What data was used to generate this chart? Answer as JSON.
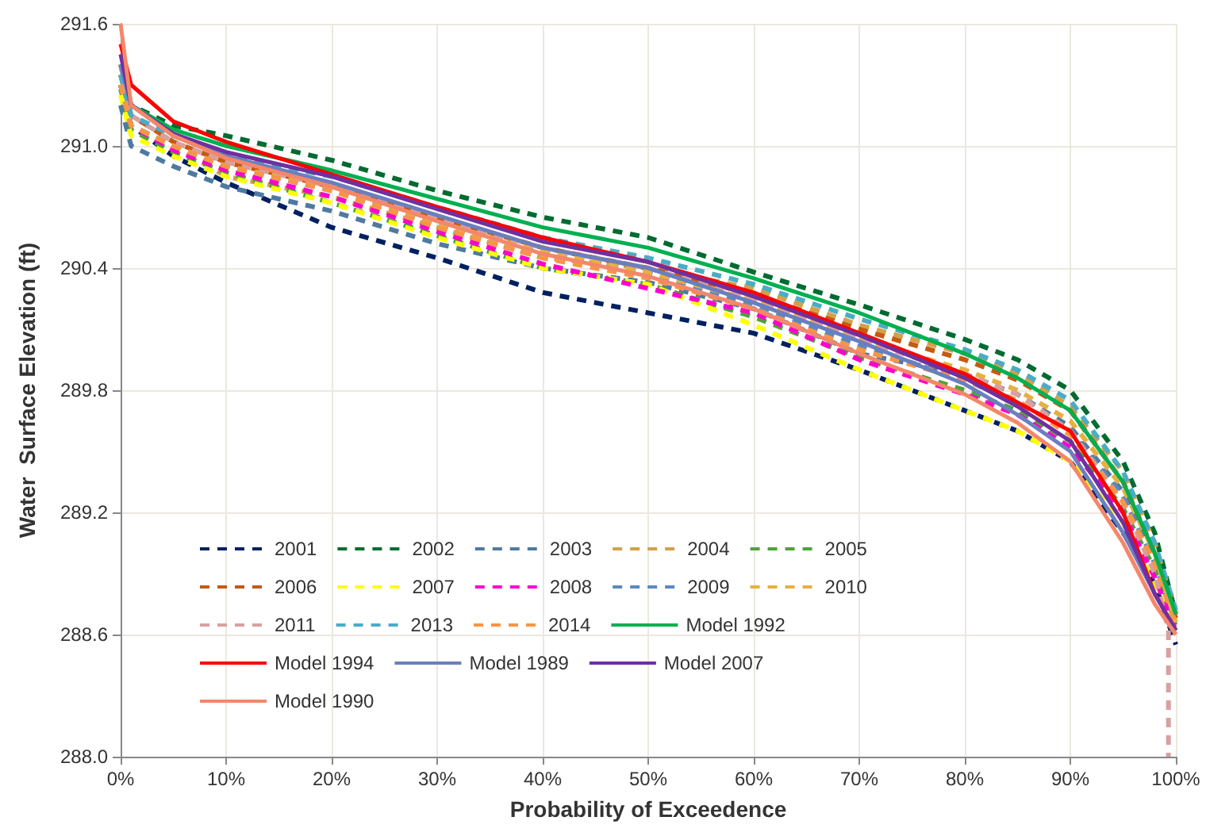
{
  "chart_data": {
    "type": "line",
    "xlabel": "Probability of Exceedence",
    "ylabel": "Water  Surface Elevation (ft)",
    "x": [
      0,
      1,
      5,
      10,
      20,
      30,
      40,
      50,
      60,
      70,
      80,
      85,
      90,
      95,
      98,
      100
    ],
    "xlim": [
      0,
      100
    ],
    "xticks": [
      {
        "value": 0,
        "label": "0%"
      },
      {
        "value": 10,
        "label": "10%"
      },
      {
        "value": 20,
        "label": "20%"
      },
      {
        "value": 30,
        "label": "30%"
      },
      {
        "value": 40,
        "label": "40%"
      },
      {
        "value": 50,
        "label": "50%"
      },
      {
        "value": 60,
        "label": "60%"
      },
      {
        "value": 70,
        "label": "70%"
      },
      {
        "value": 80,
        "label": "80%"
      },
      {
        "value": 90,
        "label": "90%"
      },
      {
        "value": 100,
        "label": "100%"
      }
    ],
    "ylim": [
      288.0,
      291.6
    ],
    "yticks": [
      {
        "value": 288.0,
        "label": "288.0"
      },
      {
        "value": 288.6,
        "label": "288.6"
      },
      {
        "value": 289.2,
        "label": "289.2"
      },
      {
        "value": 289.8,
        "label": "289.8"
      },
      {
        "value": 290.4,
        "label": "290.4"
      },
      {
        "value": 291.0,
        "label": "291.0"
      },
      {
        "value": 291.6,
        "label": "291.6"
      }
    ],
    "grid": true,
    "legend": "bottom left",
    "marker": "none",
    "series": [
      {
        "name": "2001",
        "color": "#002060",
        "line_style": "dashed",
        "values": [
          291.3,
          291.1,
          290.95,
          290.82,
          290.6,
          290.45,
          290.28,
          290.18,
          290.08,
          289.9,
          289.7,
          289.6,
          289.45,
          289.1,
          288.85,
          288.55
        ]
      },
      {
        "name": "2002",
        "color": "#006b30",
        "line_style": "dashed",
        "values": [
          291.4,
          291.2,
          291.1,
          291.05,
          290.93,
          290.78,
          290.65,
          290.55,
          290.38,
          290.22,
          290.05,
          289.95,
          289.8,
          289.45,
          289.1,
          288.7
        ]
      },
      {
        "name": "2003",
        "color": "#4f7aa0",
        "line_style": "dashed",
        "values": [
          291.2,
          291.0,
          290.9,
          290.8,
          290.68,
          290.52,
          290.4,
          290.33,
          290.2,
          289.98,
          289.88,
          289.78,
          289.62,
          289.3,
          288.95,
          288.65
        ]
      },
      {
        "name": "2004",
        "color": "#d4a04a",
        "line_style": "dashed",
        "values": [
          291.3,
          291.1,
          291.0,
          290.85,
          290.75,
          290.6,
          290.45,
          290.4,
          290.3,
          290.12,
          289.98,
          289.88,
          289.72,
          289.4,
          289.05,
          288.7
        ]
      },
      {
        "name": "2005",
        "color": "#4ea23a",
        "line_style": "dashed",
        "values": [
          291.28,
          291.08,
          290.97,
          290.87,
          290.72,
          290.56,
          290.4,
          290.32,
          290.16,
          289.96,
          289.8,
          289.7,
          289.55,
          289.22,
          288.92,
          288.64
        ]
      },
      {
        "name": "2006",
        "color": "#c55a11",
        "line_style": "dashed",
        "values": [
          291.35,
          291.15,
          291.02,
          290.92,
          290.8,
          290.65,
          290.5,
          290.4,
          290.27,
          290.1,
          289.95,
          289.85,
          289.7,
          289.35,
          289.0,
          288.68
        ]
      },
      {
        "name": "2007",
        "color": "#ffff00",
        "line_style": "dashed",
        "values": [
          291.25,
          291.05,
          290.95,
          290.85,
          290.72,
          290.55,
          290.4,
          290.32,
          290.12,
          289.9,
          289.7,
          289.6,
          289.45,
          289.15,
          288.85,
          288.62
        ]
      },
      {
        "name": "2008",
        "color": "#ff00cc",
        "line_style": "dashed",
        "values": [
          291.3,
          291.1,
          290.98,
          290.88,
          290.75,
          290.58,
          290.42,
          290.3,
          290.18,
          289.95,
          289.78,
          289.68,
          289.52,
          289.2,
          288.88,
          288.62
        ]
      },
      {
        "name": "2009",
        "color": "#5a8abf",
        "line_style": "dashed",
        "values": [
          291.3,
          291.1,
          291.0,
          290.9,
          290.78,
          290.62,
          290.48,
          290.38,
          290.22,
          290.02,
          289.85,
          289.74,
          289.6,
          289.28,
          288.95,
          288.65
        ]
      },
      {
        "name": "2010",
        "color": "#e8b040",
        "line_style": "dashed",
        "values": [
          291.3,
          291.1,
          291.0,
          290.9,
          290.8,
          290.62,
          290.48,
          290.38,
          290.24,
          290.05,
          289.9,
          289.8,
          289.65,
          289.32,
          289.0,
          288.66
        ]
      },
      {
        "name": "2011",
        "color": "#d8a0a0",
        "line_style": "dashed",
        "x": [
          0,
          1,
          5,
          10,
          20,
          30,
          40,
          50,
          60,
          70,
          80,
          85,
          90,
          95,
          98,
          99.3,
          99.3
        ],
        "values": [
          291.4,
          291.15,
          291.02,
          290.92,
          290.8,
          290.64,
          290.5,
          290.4,
          290.25,
          290.05,
          289.88,
          289.78,
          289.6,
          289.25,
          288.9,
          288.62,
          288.0
        ]
      },
      {
        "name": "2013",
        "color": "#4bacc6",
        "line_style": "dashed",
        "values": [
          291.35,
          291.15,
          291.05,
          290.95,
          290.85,
          290.7,
          290.55,
          290.45,
          290.32,
          290.15,
          290.0,
          289.9,
          289.75,
          289.4,
          289.05,
          288.72
        ]
      },
      {
        "name": "2014",
        "color": "#f79646",
        "line_style": "dashed",
        "values": [
          291.3,
          291.1,
          291.0,
          290.9,
          290.78,
          290.6,
          290.45,
          290.35,
          290.2,
          290.0,
          289.85,
          289.75,
          289.58,
          289.25,
          288.95,
          288.65
        ]
      },
      {
        "name": "Model 1992",
        "color": "#00b050",
        "line_style": "solid",
        "values": [
          291.4,
          291.2,
          291.08,
          291.0,
          290.88,
          290.74,
          290.6,
          290.5,
          290.35,
          290.18,
          289.98,
          289.86,
          289.7,
          289.35,
          289.0,
          288.7
        ]
      },
      {
        "name": "Model 1994",
        "color": "#ff0000",
        "line_style": "solid",
        "values": [
          291.5,
          291.3,
          291.12,
          291.02,
          290.86,
          290.7,
          290.55,
          290.43,
          290.28,
          290.08,
          289.88,
          289.74,
          289.6,
          289.2,
          288.8,
          288.62
        ]
      },
      {
        "name": "Model 1989",
        "color": "#6a7fbf",
        "line_style": "solid",
        "values": [
          291.4,
          291.2,
          291.05,
          290.95,
          290.82,
          290.66,
          290.5,
          290.4,
          290.23,
          290.04,
          289.83,
          289.68,
          289.5,
          289.1,
          288.8,
          288.62
        ]
      },
      {
        "name": "Model 2007",
        "color": "#7030a0",
        "line_style": "solid",
        "values": [
          291.45,
          291.2,
          291.06,
          290.97,
          290.85,
          290.69,
          290.53,
          290.43,
          290.26,
          290.07,
          289.86,
          289.72,
          289.55,
          289.15,
          288.8,
          288.62
        ]
      },
      {
        "name": "Model 1990",
        "color": "#f4876a",
        "line_style": "solid",
        "values": [
          291.6,
          291.2,
          291.05,
          290.94,
          290.8,
          290.63,
          290.47,
          290.36,
          290.2,
          289.98,
          289.78,
          289.64,
          289.45,
          289.05,
          288.75,
          288.6
        ]
      }
    ]
  }
}
